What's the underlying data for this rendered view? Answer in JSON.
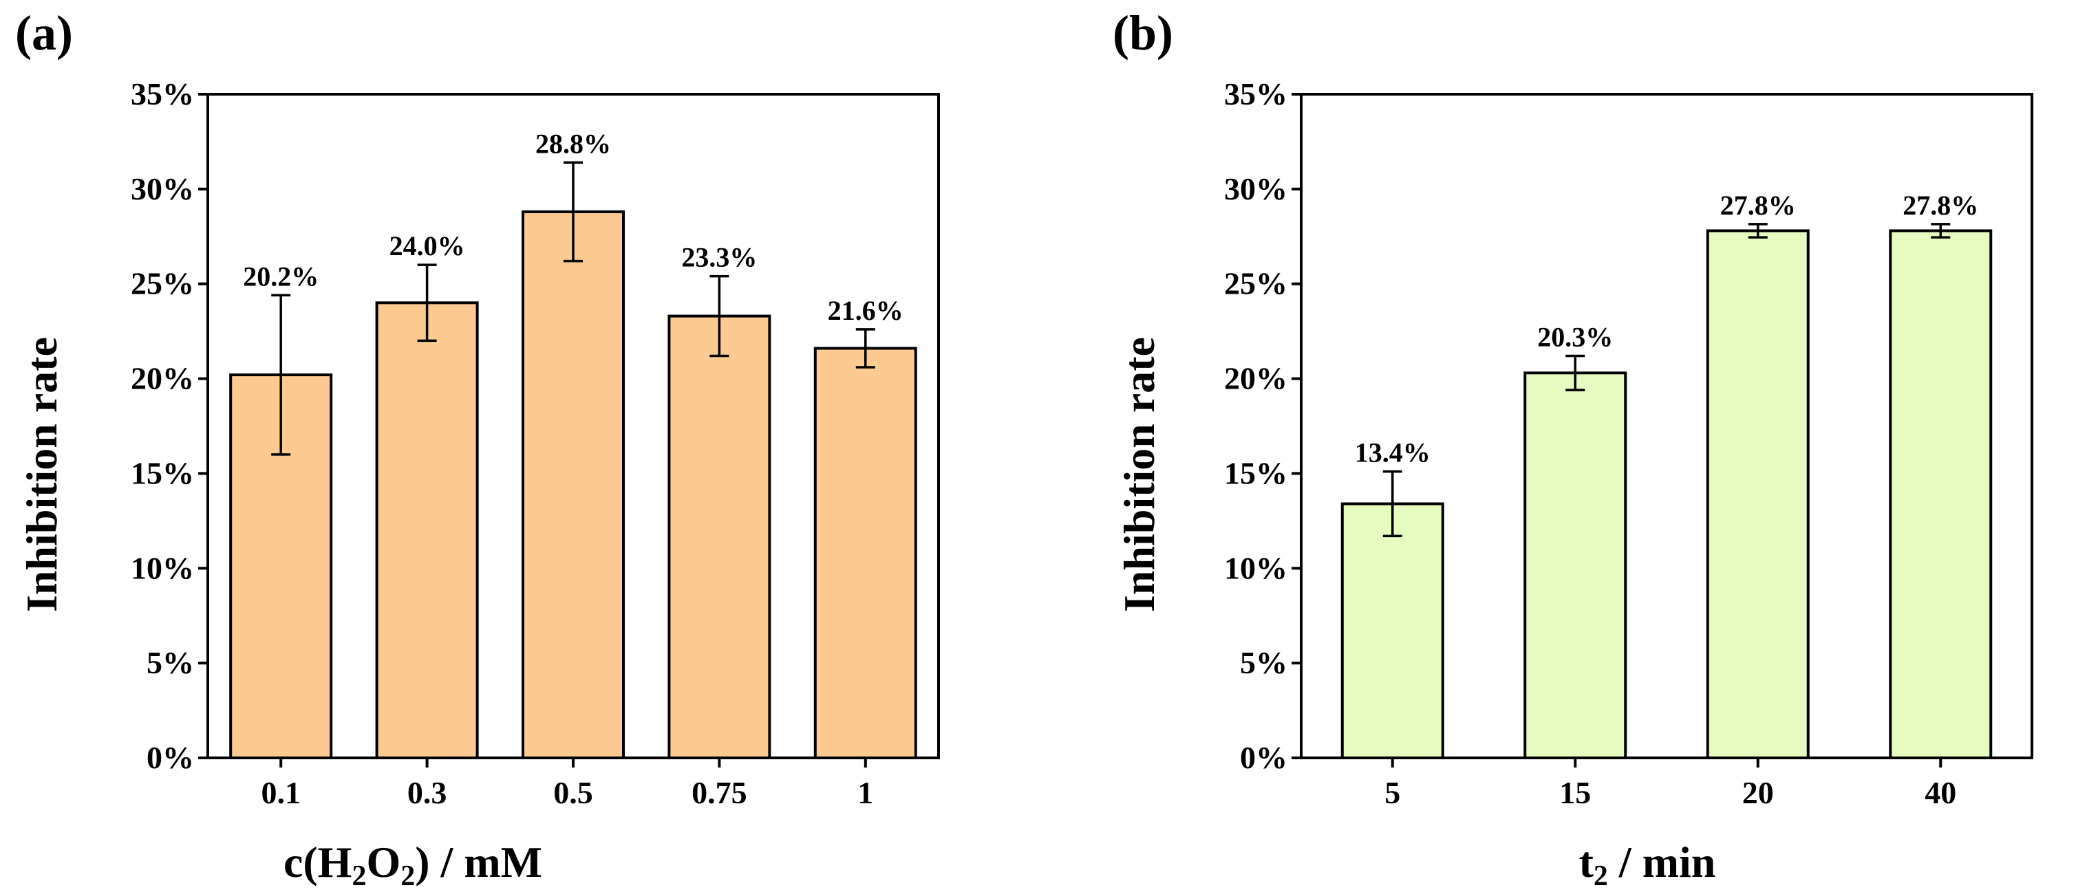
{
  "chart_data": [
    {
      "type": "bar",
      "panel_label": "(a)",
      "categories": [
        "0.1",
        "0.3",
        "0.5",
        "0.75",
        "1"
      ],
      "values": [
        20.2,
        24.0,
        28.8,
        23.3,
        21.6
      ],
      "errors": [
        4.2,
        2.0,
        2.6,
        2.1,
        1.0
      ],
      "data_labels": [
        "20.2%",
        "24.0%",
        "28.8%",
        "23.3%",
        "21.6%"
      ],
      "bar_color": "#FDCB92",
      "xlabel_parts": [
        "c(H",
        "2",
        "O",
        "2",
        ") / mM"
      ],
      "ylabel": "Inhibition rate",
      "ylim": [
        0,
        35
      ],
      "yticks": [
        0,
        5,
        10,
        15,
        20,
        25,
        30,
        35
      ],
      "ytick_labels": [
        "0%",
        "5%",
        "10%",
        "15%",
        "20%",
        "25%",
        "30%",
        "35%"
      ]
    },
    {
      "type": "bar",
      "panel_label": "(b)",
      "categories": [
        "5",
        "15",
        "20",
        "40"
      ],
      "values": [
        13.4,
        20.3,
        27.8,
        27.8
      ],
      "errors": [
        1.7,
        0.9,
        0.35,
        0.35
      ],
      "data_labels": [
        "13.4%",
        "20.3%",
        "27.8%",
        "27.8%"
      ],
      "bar_color": "#E6FBC0",
      "xlabel_parts": [
        "t",
        "2",
        " / min"
      ],
      "ylabel": "Inhibition rate",
      "ylim": [
        0,
        35
      ],
      "yticks": [
        0,
        5,
        10,
        15,
        20,
        25,
        30,
        35
      ],
      "ytick_labels": [
        "0%",
        "5%",
        "10%",
        "15%",
        "20%",
        "25%",
        "30%",
        "35%"
      ]
    }
  ]
}
